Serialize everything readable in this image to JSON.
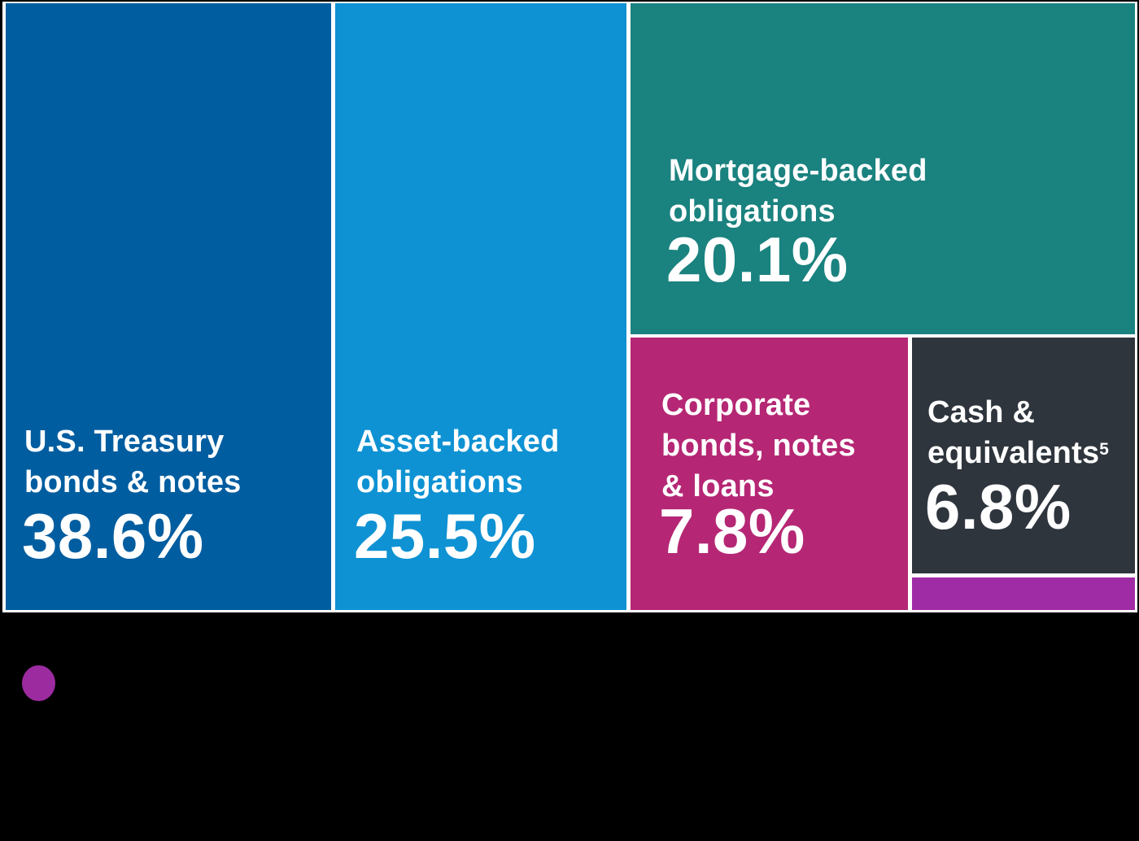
{
  "chart_data": {
    "type": "treemap",
    "title": "",
    "layout": "squarified treemap of portfolio holdings, white gaps between tiles, labels and percentages printed inside tiles in white",
    "segments": [
      {
        "label": "U.S. Treasury bonds & notes",
        "label_lines": [
          "U.S. Treasury",
          "bonds & notes"
        ],
        "value": 38.6,
        "display_value": "38.6%",
        "color": "#005DA0"
      },
      {
        "label": "Asset-backed obligations",
        "label_lines": [
          "Asset-backed",
          "obligations"
        ],
        "value": 25.5,
        "display_value": "25.5%",
        "color": "#0E92D3"
      },
      {
        "label": "Mortgage-backed obligations",
        "label_lines": [
          "Mortgage-backed",
          "obligations"
        ],
        "value": 20.1,
        "display_value": "20.1%",
        "color": "#1A827F"
      },
      {
        "label": "Corporate bonds, notes & loans",
        "label_lines": [
          "Corporate",
          "bonds, notes",
          "& loans"
        ],
        "value": 7.8,
        "display_value": "7.8%",
        "color": "#B52774"
      },
      {
        "label": "Cash & equivalents",
        "footnote_marker": "5",
        "label_lines": [
          "Cash &",
          "equivalents"
        ],
        "value": 6.8,
        "display_value": "6.8%",
        "color": "#2F353D"
      },
      {
        "label": "",
        "value": null,
        "display_value": "",
        "color": "#A02CA5"
      }
    ],
    "legend": {
      "marker_color": "#9C2BA0",
      "label": ""
    },
    "text_color": "#FFFFFF",
    "gap_color": "#FFFFFF",
    "background_color": "#000000"
  }
}
